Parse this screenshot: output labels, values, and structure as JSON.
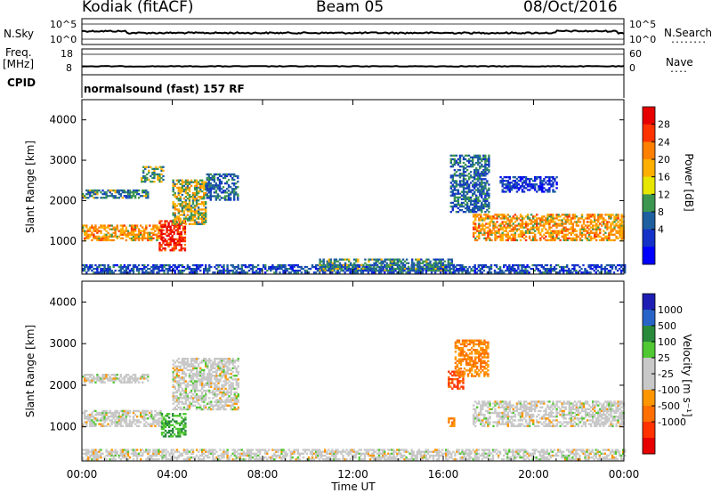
{
  "header": {
    "station": "Kodiak (fitACF)",
    "beam": "Beam 05",
    "date": "08/Oct/2016"
  },
  "left_labels": {
    "nsky": "N.Sky",
    "freq_line1": "Freq.",
    "freq_line2": "[MHz]",
    "cpid": "CPID"
  },
  "right_labels": {
    "nsearch": "N.Search",
    "nave": "Nave",
    "nsearch_dots": "........",
    "nave_dots": "...."
  },
  "noise_panel": {
    "left_ticks": [
      "10^5",
      "10^0"
    ],
    "right_ticks": [
      "10^5",
      "10^0"
    ]
  },
  "freq_panel": {
    "left_ticks": [
      "18",
      "8"
    ],
    "right_ticks": [
      "60",
      "0"
    ]
  },
  "cpid_panel": {
    "text": "normalsound (fast) 157 RF"
  },
  "power_colorbar": {
    "label": "Power [dB]",
    "ticks": [
      "28",
      "24",
      "20",
      "16",
      "12",
      "8",
      "4"
    ],
    "colors": [
      "#e60000",
      "#ff3300",
      "#ff8000",
      "#ffb000",
      "#e6e600",
      "#3c9650",
      "#1e5fa0",
      "#1432c8",
      "#0000ff"
    ]
  },
  "velocity_colorbar": {
    "label": "Velocity [m s⁻¹]",
    "ticks": [
      "1000",
      "500",
      "100",
      "25",
      "-25",
      "-100",
      "-500",
      "-1000"
    ],
    "colors": [
      "#1e1eb4",
      "#2864c8",
      "#2a8a3c",
      "#50c832",
      "#c8c8c8",
      "#c8c8c8",
      "#ff9600",
      "#ff6e00",
      "#ff3200",
      "#e60000"
    ]
  },
  "chart_data": [
    {
      "type": "heatmap",
      "title": "",
      "xlabel": "",
      "ylabel": "Slant Range [km]",
      "colorbar": "Power [dB]",
      "xlim": [
        0,
        24
      ],
      "ylim": [
        180,
        4500
      ],
      "x_ticks": [
        0,
        4,
        8,
        12,
        16,
        20,
        24
      ],
      "y_ticks": [
        1000,
        2000,
        3000,
        4000
      ],
      "features": [
        {
          "t0": 0.0,
          "t1": 3.6,
          "r0": 1000,
          "r1": 1400,
          "power": 20
        },
        {
          "t0": 0.0,
          "t1": 2.9,
          "r0": 2050,
          "r1": 2250,
          "power": 12
        },
        {
          "t0": 2.6,
          "t1": 3.6,
          "r0": 2450,
          "r1": 2850,
          "power": 14
        },
        {
          "t0": 3.4,
          "t1": 4.6,
          "r0": 750,
          "r1": 1500,
          "power": 28
        },
        {
          "t0": 4.0,
          "t1": 5.5,
          "r0": 1400,
          "r1": 2500,
          "power": 16
        },
        {
          "t0": 5.5,
          "t1": 6.9,
          "r0": 2000,
          "r1": 2650,
          "power": 10
        },
        {
          "t0": 0.0,
          "t1": 24.0,
          "r0": 200,
          "r1": 420,
          "power": 8
        },
        {
          "t0": 10.5,
          "t1": 16.5,
          "r0": 250,
          "r1": 550,
          "power": 12
        },
        {
          "t0": 16.3,
          "t1": 18.0,
          "r0": 1700,
          "r1": 3100,
          "power": 10
        },
        {
          "t0": 17.3,
          "t1": 24.0,
          "r0": 1000,
          "r1": 1650,
          "power": 20
        },
        {
          "t0": 18.5,
          "t1": 21.0,
          "r0": 2200,
          "r1": 2600,
          "power": 6
        }
      ]
    },
    {
      "type": "heatmap",
      "title": "",
      "xlabel": "Time UT",
      "ylabel": "Slant Range [km]",
      "colorbar": "Velocity [m s⁻¹]",
      "xlim": [
        0,
        24
      ],
      "ylim": [
        180,
        4500
      ],
      "x_ticks": [
        0,
        4,
        8,
        12,
        16,
        20,
        24
      ],
      "x_tick_labels": [
        "00:00",
        "04:00",
        "08:00",
        "12:00",
        "16:00",
        "20:00",
        "00:00"
      ],
      "y_ticks": [
        1000,
        2000,
        3000,
        4000
      ],
      "features": [
        {
          "t0": 0.0,
          "t1": 3.6,
          "r0": 1000,
          "r1": 1400,
          "velocity": 0
        },
        {
          "t0": 0.0,
          "t1": 2.9,
          "r0": 2050,
          "r1": 2250,
          "velocity": 0
        },
        {
          "t0": 3.5,
          "t1": 4.6,
          "r0": 750,
          "r1": 1300,
          "velocity": 100
        },
        {
          "t0": 4.0,
          "t1": 6.9,
          "r0": 1400,
          "r1": 2650,
          "velocity": 0
        },
        {
          "t0": 0.0,
          "t1": 24.0,
          "r0": 200,
          "r1": 450,
          "velocity": 0
        },
        {
          "t0": 16.2,
          "t1": 16.9,
          "r0": 1900,
          "r1": 2350,
          "velocity": -500
        },
        {
          "t0": 16.2,
          "t1": 16.5,
          "r0": 1000,
          "r1": 1200,
          "velocity": -100
        },
        {
          "t0": 17.3,
          "t1": 24.0,
          "r0": 1000,
          "r1": 1600,
          "velocity": 0
        },
        {
          "t0": 16.5,
          "t1": 18.0,
          "r0": 2200,
          "r1": 3100,
          "velocity": -100
        }
      ]
    }
  ]
}
